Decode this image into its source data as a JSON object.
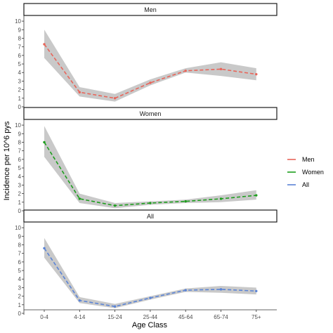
{
  "chart_data": {
    "type": "line",
    "ylabel": "Incidence per 10^6 pys",
    "xlabel": "Age Class",
    "categories": [
      "0-4",
      "4-14",
      "15-24",
      "25-44",
      "45-64",
      "65-74",
      "75+"
    ],
    "ylim": [
      0,
      10.5
    ],
    "yticks": [
      "0",
      "1",
      "2",
      "3",
      "4",
      "5",
      "6",
      "7",
      "8",
      "9",
      "10"
    ],
    "grid": false,
    "legend_position": "right",
    "line_style": "dashed",
    "ribbon_color": "#bfbfbf",
    "panels": [
      {
        "strip": "Men",
        "series": "Men",
        "color": "#E8655A",
        "values": [
          7.3,
          1.7,
          1.0,
          2.8,
          4.2,
          4.4,
          3.8
        ],
        "lower": [
          5.7,
          1.2,
          0.6,
          2.5,
          4.0,
          3.6,
          3.1
        ],
        "upper": [
          9.0,
          2.3,
          1.5,
          3.2,
          4.5,
          5.2,
          4.5
        ]
      },
      {
        "strip": "Women",
        "series": "Women",
        "color": "#1E9E1E",
        "values": [
          8.0,
          1.4,
          0.6,
          0.9,
          1.1,
          1.4,
          1.8
        ],
        "lower": [
          6.3,
          0.9,
          0.3,
          0.7,
          0.9,
          1.0,
          1.3
        ],
        "upper": [
          9.9,
          2.0,
          0.9,
          1.1,
          1.3,
          1.8,
          2.4
        ]
      },
      {
        "strip": "All",
        "series": "All",
        "color": "#5B84D6",
        "values": [
          7.6,
          1.5,
          0.8,
          1.8,
          2.7,
          2.8,
          2.6
        ],
        "lower": [
          6.5,
          1.2,
          0.6,
          1.6,
          2.5,
          2.4,
          2.2
        ],
        "upper": [
          8.8,
          1.9,
          1.1,
          2.0,
          2.9,
          3.2,
          3.0
        ]
      }
    ],
    "legend": [
      {
        "name": "Men",
        "color": "#E8655A"
      },
      {
        "name": "Women",
        "color": "#1E9E1E"
      },
      {
        "name": "All",
        "color": "#5B84D6"
      }
    ]
  }
}
